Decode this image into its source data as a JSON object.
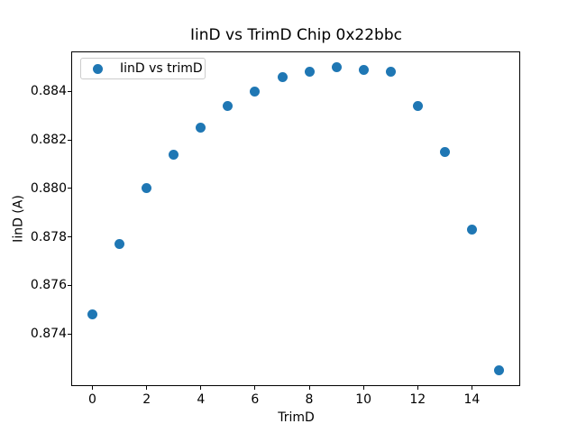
{
  "chart_data": {
    "type": "scatter",
    "title": "IinD vs TrimD Chip 0x22bbc",
    "xlabel": "TrimD",
    "ylabel": "IinD (A)",
    "legend": {
      "position": "upper left",
      "entries": [
        "IinD vs trimD"
      ]
    },
    "marker_color": "#1f77b4",
    "background_color": "#ffffff",
    "grid": false,
    "x": [
      0,
      1,
      2,
      3,
      4,
      5,
      6,
      7,
      8,
      9,
      10,
      11,
      12,
      13,
      14,
      15
    ],
    "y": [
      0.8748,
      0.8777,
      0.88,
      0.8814,
      0.8825,
      0.8834,
      0.884,
      0.8846,
      0.8848,
      0.885,
      0.8849,
      0.8848,
      0.8834,
      0.8815,
      0.8783,
      0.8725
    ],
    "xlim": [
      -0.75,
      15.75
    ],
    "ylim": [
      0.87187,
      0.88563
    ],
    "xticks": [
      0,
      2,
      4,
      6,
      8,
      10,
      12,
      14
    ],
    "yticks": [
      0.874,
      0.876,
      0.878,
      0.88,
      0.882,
      0.884
    ]
  }
}
